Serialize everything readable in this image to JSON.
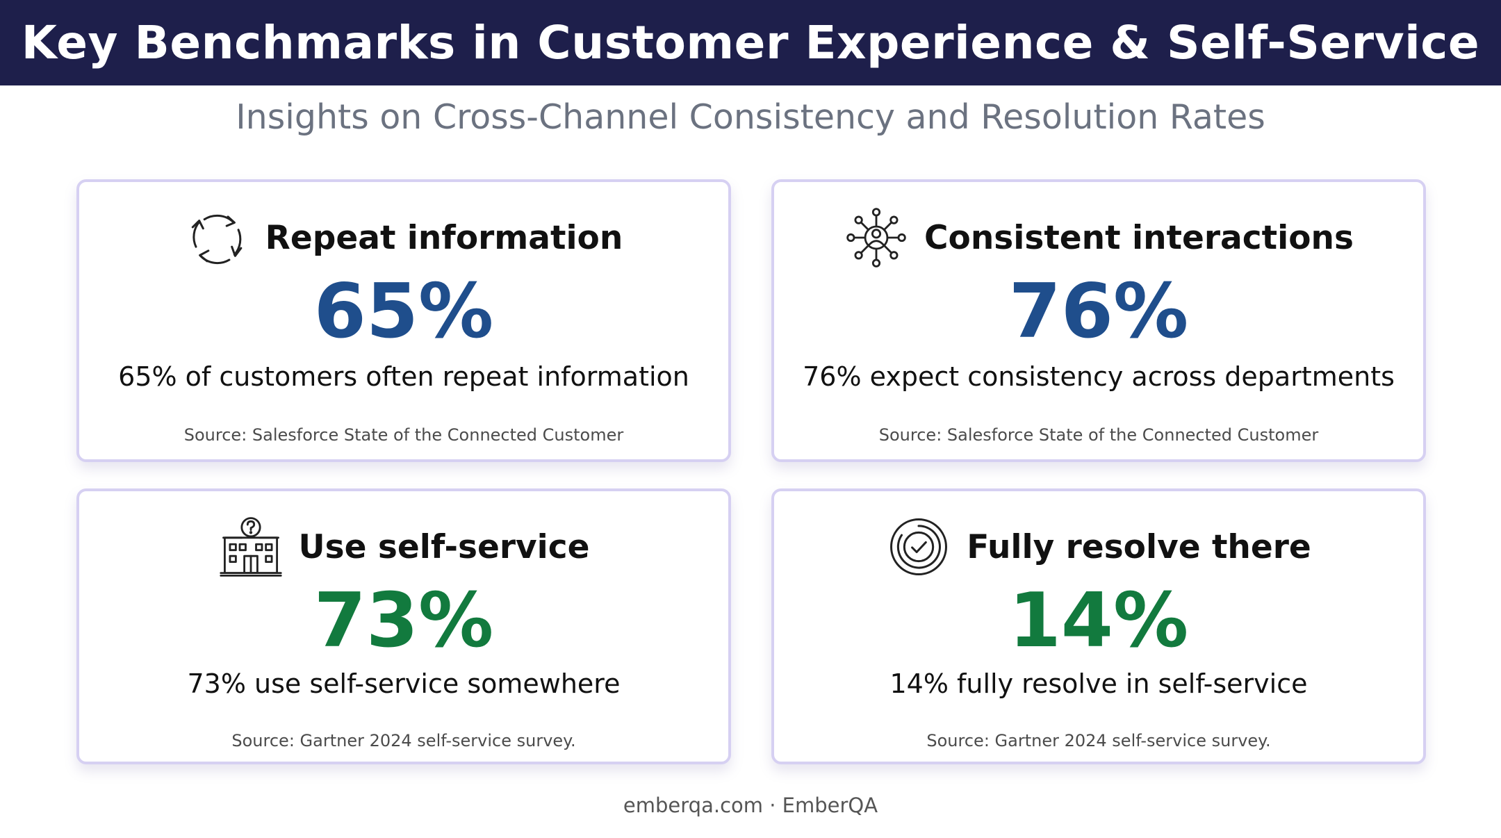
{
  "header": {
    "title": "Key Benchmarks in Customer Experience & Self-Service",
    "background_color": "#1e1f4b"
  },
  "subtitle": "Insights on Cross-Channel Consistency and Resolution Rates",
  "colors": {
    "blue_value": "#1f4e8c",
    "green_value": "#127a3e",
    "card_border": "#d6d0f2"
  },
  "cards": [
    {
      "icon": "refresh-cycle-icon",
      "title": "Repeat information",
      "value": "65%",
      "value_color": "#1f4e8c",
      "description": "65% of customers often repeat information",
      "source": "Source: Salesforce State of the Connected Customer"
    },
    {
      "icon": "network-hub-icon",
      "title": "Consistent interactions",
      "value": "76%",
      "value_color": "#1f4e8c",
      "description": "76% expect consistency across departments",
      "source": "Source: Salesforce State of the Connected Customer"
    },
    {
      "icon": "building-question-icon",
      "title": "Use self-service",
      "value": "73%",
      "value_color": "#127a3e",
      "description": "73% use self-service somewhere",
      "source": "Source: Gartner 2024 self-service survey."
    },
    {
      "icon": "check-circle-icon",
      "title": "Fully resolve there",
      "value": "14%",
      "value_color": "#127a3e",
      "description": "14% fully resolve in self-service",
      "source": "Source: Gartner 2024 self-service survey."
    }
  ],
  "footer": "emberqa.com · EmberQA"
}
